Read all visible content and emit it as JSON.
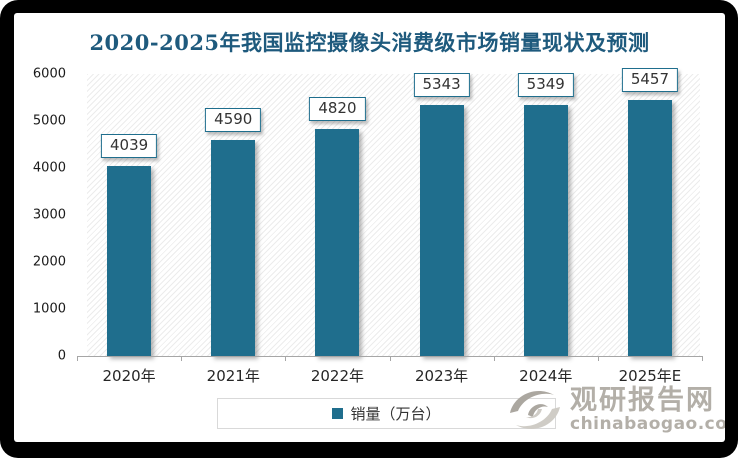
{
  "chart_data": {
    "type": "bar",
    "title": "2020-2025年我国监控摄像头消费级市场销量现状及预测",
    "categories": [
      "2020年",
      "2021年",
      "2022年",
      "2023年",
      "2024年",
      "2025年E"
    ],
    "values": [
      4039,
      4590,
      4820,
      5343,
      5349,
      5457
    ],
    "series_name": "销量（万台）",
    "xlabel": "",
    "ylabel": "",
    "ylim": [
      0,
      6000
    ],
    "yticks": [
      0,
      1000,
      2000,
      3000,
      4000,
      5000,
      6000
    ],
    "grid": false,
    "legend_position": "bottom",
    "bar_color": "#1f6e8d",
    "plot_background": "diagonal-hatch"
  },
  "legend": {
    "label": "销量（万台）",
    "marker_color": "#1f6e8d"
  },
  "watermark": {
    "site_name": "观研报告网",
    "site_domain": "chinabaogao.com"
  },
  "colors": {
    "bar": "#1f6e8d",
    "title": "#1e5a7d",
    "frame": "#000000",
    "axis_line": "#a6a6a6",
    "watermark_gray": "#b3afa8"
  }
}
